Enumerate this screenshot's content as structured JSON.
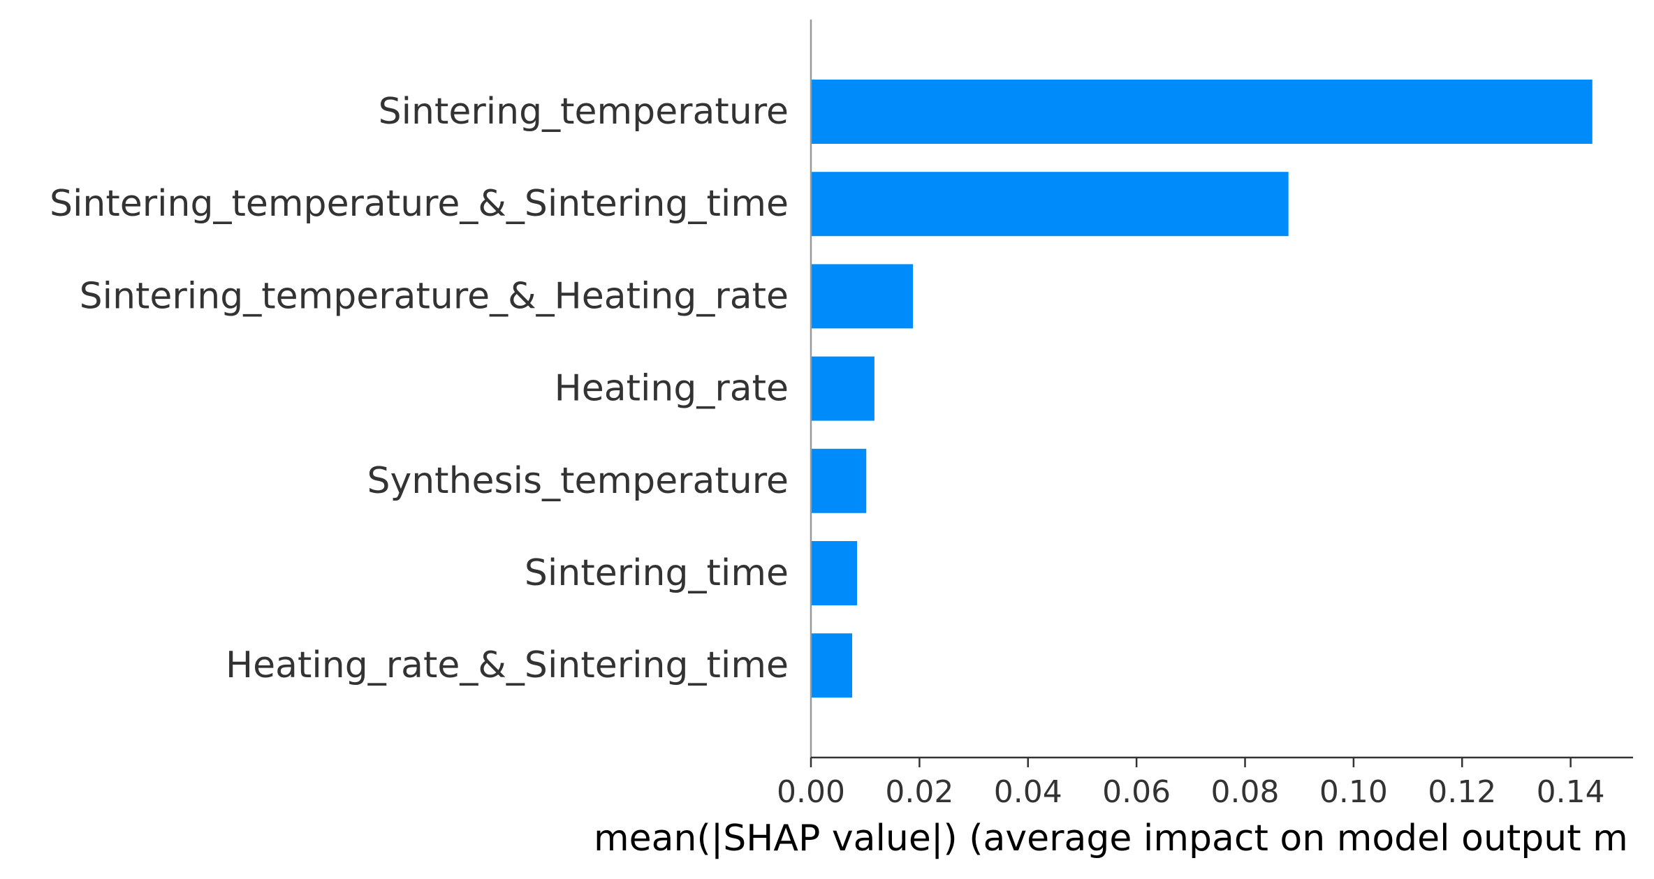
{
  "chart_data": {
    "type": "bar",
    "orientation": "horizontal",
    "categories": [
      "Sintering_temperature",
      "Sintering_temperature_&_Sintering_time",
      "Sintering_temperature_&_Heating_rate",
      "Heating_rate",
      "Synthesis_temperature",
      "Sintering_time",
      "Heating_rate_&_Sintering_time"
    ],
    "values": [
      0.144,
      0.088,
      0.0188,
      0.0117,
      0.0102,
      0.0085,
      0.0076
    ],
    "xlabel": "mean(|SHAP value|) (average impact on model output m",
    "xlim": [
      0,
      0.1515
    ],
    "xticks": [
      "0.00",
      "0.02",
      "0.04",
      "0.06",
      "0.08",
      "0.10",
      "0.12",
      "0.14"
    ],
    "tick_values": [
      0,
      0.02,
      0.04,
      0.06,
      0.08,
      0.1,
      0.12,
      0.14
    ],
    "bar_color": "#008bfb",
    "grid": false,
    "legend": "none"
  }
}
